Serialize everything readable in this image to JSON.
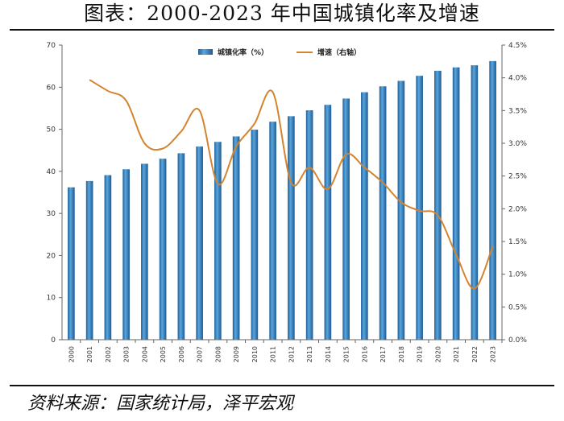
{
  "title": "图表：2000-2023 年中国城镇化率及增速",
  "source": "资料来源：国家统计局，泽平宏观",
  "chart_data": {
    "type": "bar",
    "categories": [
      "2000",
      "2001",
      "2002",
      "2003",
      "2004",
      "2005",
      "2006",
      "2007",
      "2008",
      "2009",
      "2010",
      "2011",
      "2012",
      "2013",
      "2014",
      "2015",
      "2016",
      "2017",
      "2018",
      "2019",
      "2020",
      "2021",
      "2022",
      "2023"
    ],
    "series": [
      {
        "name": "城镇化率（%）",
        "type": "bar",
        "axis": "left",
        "color": "#3d86c6",
        "values": [
          36.2,
          37.7,
          39.1,
          40.5,
          41.8,
          43.0,
          44.3,
          45.9,
          47.0,
          48.3,
          49.9,
          51.8,
          53.1,
          54.5,
          55.8,
          57.3,
          58.8,
          60.2,
          61.5,
          62.7,
          63.9,
          64.7,
          65.2,
          66.2
        ]
      },
      {
        "name": "增速（右轴）",
        "type": "line",
        "axis": "right",
        "color": "#d4842f",
        "values": [
          null,
          3.97,
          3.8,
          3.65,
          3.0,
          2.92,
          3.18,
          3.5,
          2.38,
          2.95,
          3.3,
          3.78,
          2.4,
          2.63,
          2.3,
          2.83,
          2.63,
          2.4,
          2.1,
          1.97,
          1.9,
          1.3,
          0.78,
          1.43
        ]
      }
    ],
    "y_left": {
      "min": 0,
      "max": 70,
      "step": 10,
      "ticks": [
        "0",
        "10",
        "20",
        "30",
        "40",
        "50",
        "60",
        "70"
      ]
    },
    "y_right": {
      "min": 0,
      "max": 4.5,
      "step": 0.5,
      "ticks": [
        "0.0%",
        "0.5%",
        "1.0%",
        "1.5%",
        "2.0%",
        "2.5%",
        "3.0%",
        "3.5%",
        "4.0%",
        "4.5%"
      ]
    },
    "legend_position": "top-right",
    "grid": false
  }
}
